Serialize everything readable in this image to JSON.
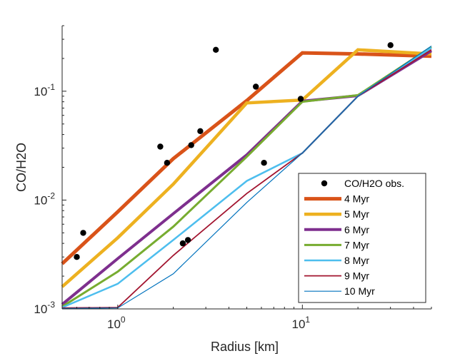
{
  "chart_data": {
    "type": "line",
    "title": "",
    "xlabel": "Radius [km]",
    "ylabel": "CO/H2O",
    "xscale": "log",
    "yscale": "log",
    "xlim": [
      0.5,
      50
    ],
    "ylim": [
      0.001,
      0.4
    ],
    "x_ticks": [
      {
        "base": "10",
        "exp": "0",
        "value": 1
      },
      {
        "base": "10",
        "exp": "1",
        "value": 10
      }
    ],
    "y_ticks": [
      {
        "base": "10",
        "exp": "-3",
        "value": 0.001
      },
      {
        "base": "10",
        "exp": "-2",
        "value": 0.01
      },
      {
        "base": "10",
        "exp": "-1",
        "value": 0.1
      }
    ],
    "legend_position": "bottom-right",
    "observations": {
      "name": "CO/H2O obs.",
      "color": "#000000",
      "points": [
        {
          "x": 0.6,
          "y": 0.003
        },
        {
          "x": 0.65,
          "y": 0.005
        },
        {
          "x": 1.7,
          "y": 0.031
        },
        {
          "x": 1.85,
          "y": 0.022
        },
        {
          "x": 2.25,
          "y": 0.004
        },
        {
          "x": 2.4,
          "y": 0.0043
        },
        {
          "x": 2.5,
          "y": 0.032
        },
        {
          "x": 2.8,
          "y": 0.043
        },
        {
          "x": 3.4,
          "y": 0.24
        },
        {
          "x": 5.6,
          "y": 0.11
        },
        {
          "x": 6.2,
          "y": 0.022
        },
        {
          "x": 9.8,
          "y": 0.085
        },
        {
          "x": 30,
          "y": 0.265
        }
      ]
    },
    "series": [
      {
        "name": "4 Myr",
        "color": "#D95319",
        "width": 5,
        "x": [
          0.5,
          1,
          2,
          5,
          10,
          20,
          50
        ],
        "y": [
          0.0026,
          0.0078,
          0.024,
          0.082,
          0.225,
          0.22,
          0.21
        ]
      },
      {
        "name": "5 Myr",
        "color": "#EDB120",
        "width": 4.5,
        "x": [
          0.5,
          1,
          2,
          5,
          10,
          20,
          50
        ],
        "y": [
          0.0016,
          0.0045,
          0.014,
          0.078,
          0.083,
          0.24,
          0.22
        ]
      },
      {
        "name": "6 Myr",
        "color": "#7E2F8E",
        "width": 4,
        "x": [
          0.5,
          1,
          2,
          5,
          10,
          20,
          50
        ],
        "y": [
          0.0011,
          0.0029,
          0.0075,
          0.026,
          0.081,
          0.091,
          0.235
        ]
      },
      {
        "name": "7 Myr",
        "color": "#77AC30",
        "width": 3,
        "x": [
          0.5,
          1,
          2,
          5,
          10,
          20,
          50
        ],
        "y": [
          0.00105,
          0.0022,
          0.0057,
          0.025,
          0.08,
          0.092,
          0.255
        ]
      },
      {
        "name": "8 Myr",
        "color": "#4DBEEE",
        "width": 2.5,
        "x": [
          0.5,
          1,
          2,
          5,
          10,
          20,
          50
        ],
        "y": [
          0.00103,
          0.0017,
          0.0043,
          0.015,
          0.027,
          0.09,
          0.25
        ]
      },
      {
        "name": "9 Myr",
        "color": "#A2142F",
        "width": 1.8,
        "x": [
          0.5,
          1,
          2,
          5,
          10,
          20,
          50
        ],
        "y": [
          0.00102,
          0.00103,
          0.0031,
          0.0115,
          0.027,
          0.09,
          0.24
        ]
      },
      {
        "name": "10 Myr",
        "color": "#0072BD",
        "width": 1.2,
        "x": [
          0.5,
          1,
          2,
          5,
          10,
          20,
          50
        ],
        "y": [
          0.00101,
          0.00102,
          0.0021,
          0.0095,
          0.027,
          0.09,
          0.26
        ]
      }
    ]
  }
}
